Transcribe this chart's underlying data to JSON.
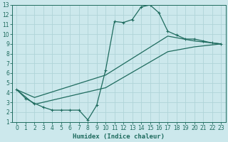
{
  "xlabel": "Humidex (Indice chaleur)",
  "bg_color": "#cce8ec",
  "grid_color": "#b0d4d8",
  "line_color": "#1e6b5e",
  "xlim": [
    -0.5,
    23.5
  ],
  "ylim": [
    1,
    13
  ],
  "xticks": [
    0,
    1,
    2,
    3,
    4,
    5,
    6,
    7,
    8,
    9,
    10,
    11,
    12,
    13,
    14,
    15,
    16,
    17,
    18,
    19,
    20,
    21,
    22,
    23
  ],
  "yticks": [
    1,
    2,
    3,
    4,
    5,
    6,
    7,
    8,
    9,
    10,
    11,
    12,
    13
  ],
  "line1_x": [
    0,
    1,
    2,
    3,
    4,
    5,
    6,
    7,
    8,
    9,
    10,
    11,
    12,
    13,
    14,
    15,
    16,
    17,
    18,
    19,
    20,
    21,
    22,
    23
  ],
  "line1_y": [
    4.3,
    3.4,
    2.9,
    2.5,
    2.2,
    2.2,
    2.2,
    2.2,
    1.2,
    2.7,
    6.3,
    11.3,
    11.2,
    11.5,
    12.8,
    13.0,
    12.2,
    10.3,
    9.9,
    9.5,
    9.5,
    9.3,
    9.1,
    9.0
  ],
  "line2_x": [
    0,
    2,
    10,
    17,
    20,
    23
  ],
  "line2_y": [
    4.3,
    3.5,
    5.8,
    9.8,
    9.3,
    9.0
  ],
  "line3_x": [
    0,
    2,
    10,
    17,
    20,
    23
  ],
  "line3_y": [
    4.3,
    2.8,
    4.5,
    8.2,
    8.7,
    9.0
  ]
}
